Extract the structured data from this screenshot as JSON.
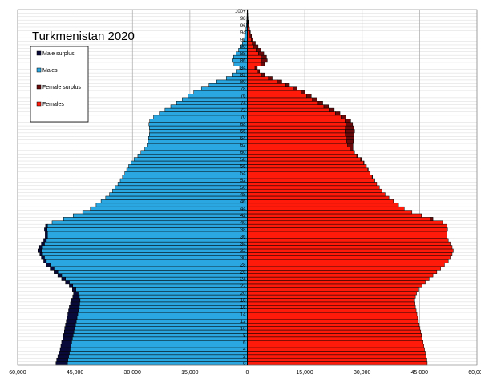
{
  "chart_data": {
    "type": "bar",
    "orientation": "horizontal",
    "title": "Turkmenistan 2020",
    "xlabel": "",
    "ylabel": "",
    "xlim": [
      -60000,
      60000
    ],
    "xticks": [
      "60,000",
      "45,000",
      "30,000",
      "15,000",
      "0",
      "15,000",
      "30,000",
      "45,000",
      "60,000"
    ],
    "grid": true,
    "legend_position": "top-left",
    "legend": [
      {
        "label": "Male surplus",
        "color": "#0a0a3a"
      },
      {
        "label": "Males",
        "color": "#2aa7e0"
      },
      {
        "label": "Female surplus",
        "color": "#6a0a0a"
      },
      {
        "label": "Females",
        "color": "#ff1a0a"
      }
    ],
    "age_labels": [
      "0",
      "2",
      "4",
      "6",
      "8",
      "10",
      "12",
      "14",
      "16",
      "18",
      "20",
      "22",
      "24",
      "26",
      "28",
      "30",
      "32",
      "34",
      "36",
      "38",
      "40",
      "42",
      "44",
      "46",
      "48",
      "50",
      "52",
      "54",
      "56",
      "58",
      "60",
      "62",
      "64",
      "66",
      "68",
      "70",
      "72",
      "74",
      "76",
      "78",
      "80",
      "82",
      "84",
      "86",
      "88",
      "90",
      "92",
      "94",
      "96",
      "98",
      "100+"
    ],
    "series": [
      {
        "name": "Males",
        "values": [
          50000,
          49800,
          49500,
          49200,
          48900,
          48700,
          48500,
          48200,
          48000,
          47800,
          47700,
          47500,
          47300,
          47100,
          46900,
          46700,
          46500,
          46200,
          45900,
          45600,
          45400,
          45700,
          46500,
          47500,
          48500,
          49500,
          50500,
          51500,
          52500,
          53200,
          53800,
          54200,
          54500,
          54300,
          53800,
          53200,
          52800,
          52800,
          53000,
          52700,
          51000,
          48000,
          45500,
          43000,
          41000,
          39500,
          38200,
          37000,
          36000,
          35200,
          34500,
          33800,
          33200,
          32600,
          32000,
          31500,
          31000,
          30400,
          29600,
          28600,
          27800,
          26800,
          26200,
          25900,
          25800,
          25600,
          25500,
          25600,
          25700,
          25500,
          24500,
          23000,
          21500,
          20000,
          18500,
          17000,
          15500,
          14000,
          12000,
          10000,
          8000,
          5500,
          3800,
          2800,
          2000,
          3500,
          3800,
          3600,
          2900,
          2300,
          1700,
          1300,
          1000,
          700,
          500,
          350,
          250,
          180,
          120,
          80,
          60
        ]
      },
      {
        "name": "Females",
        "values": [
          47000,
          46900,
          46700,
          46500,
          46300,
          46100,
          45900,
          45700,
          45500,
          45300,
          45100,
          44900,
          44700,
          44500,
          44300,
          44100,
          43900,
          43800,
          43700,
          43900,
          44200,
          44800,
          45600,
          46500,
          47500,
          48500,
          49500,
          50500,
          51500,
          52500,
          53000,
          53500,
          53800,
          53500,
          53000,
          52500,
          52200,
          52200,
          52300,
          52200,
          51000,
          48500,
          45500,
          43000,
          41000,
          39500,
          38300,
          37000,
          36000,
          35200,
          34500,
          33800,
          33300,
          32700,
          32100,
          31600,
          31100,
          30500,
          29800,
          28900,
          28000,
          27600,
          27600,
          27700,
          27800,
          27900,
          28000,
          27800,
          27500,
          27000,
          25800,
          24200,
          22700,
          21200,
          19700,
          18200,
          16700,
          15000,
          13000,
          11000,
          9000,
          6500,
          4500,
          3200,
          2600,
          4500,
          5200,
          5000,
          4300,
          3600,
          2800,
          2100,
          1500,
          1100,
          800,
          550,
          380,
          260,
          170,
          110,
          80
        ]
      }
    ]
  }
}
